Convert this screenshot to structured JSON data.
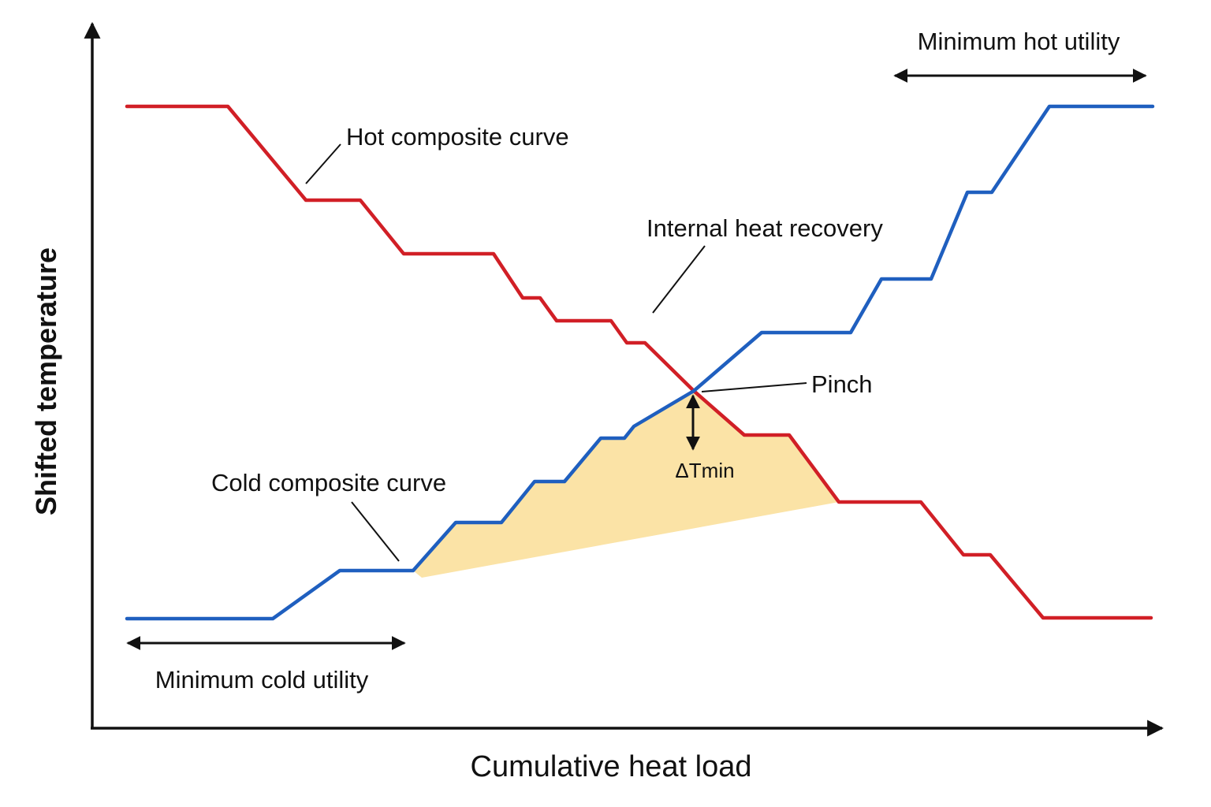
{
  "axes": {
    "y_label": "Shifted temperature",
    "x_label": "Cumulative heat load"
  },
  "labels": {
    "hot_curve": "Hot composite curve",
    "cold_curve": "Cold composite curve",
    "recovery": "Internal heat recovery",
    "pinch": "Pinch",
    "dtmin": "ΔTmin",
    "min_hot_utility": "Minimum hot utility",
    "min_cold_utility": "Minimum cold utility"
  },
  "colors": {
    "hot": "#d11f26",
    "cold": "#1f5fbf",
    "recovery_fill": "#fbe3a6",
    "ink": "#111111"
  }
}
